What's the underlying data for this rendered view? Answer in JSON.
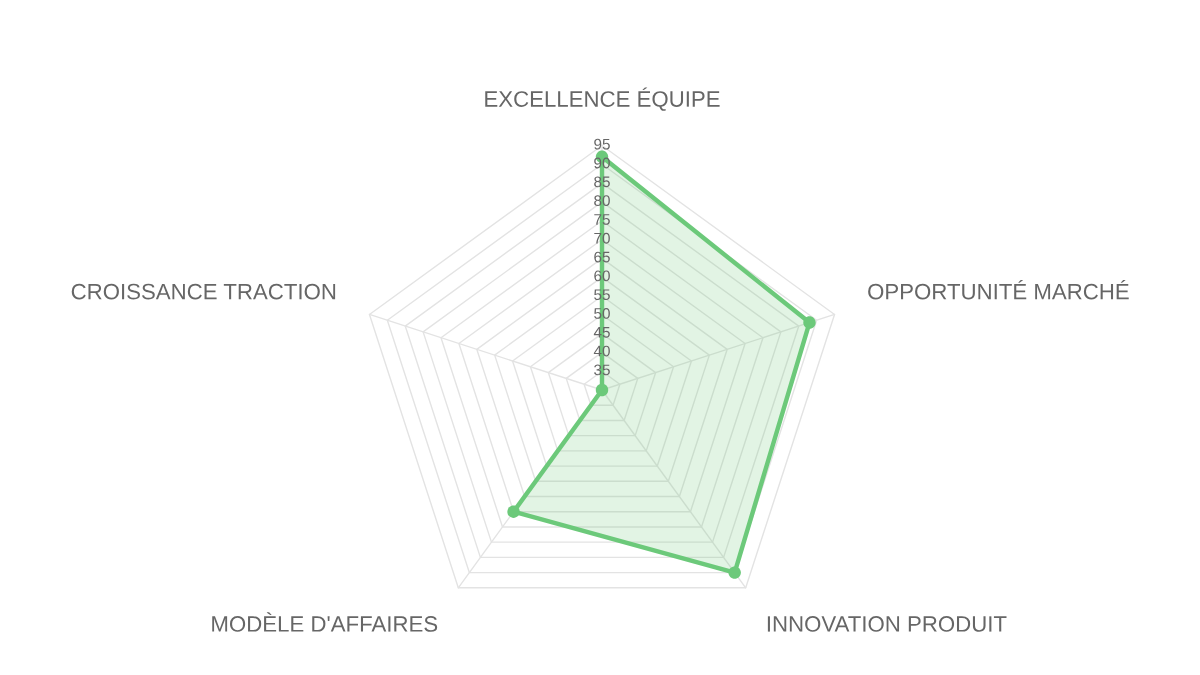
{
  "chart_data": {
    "type": "radar",
    "categories": [
      "EXCELLENCE ÉQUIPE",
      "OPPORTUNITÉ MARCHÉ",
      "INNOVATION PRODUIT",
      "MODÈLE D'AFFAIRES",
      "CROISSANCE TRACTION"
    ],
    "series": [
      {
        "color": "#6cc97a",
        "values": [
          92,
          88,
          90,
          70,
          30
        ]
      }
    ],
    "ylim": [
      30,
      95
    ],
    "yticks": [
      35,
      40,
      45,
      50,
      55,
      60,
      65,
      70,
      75,
      80,
      85,
      90,
      95
    ],
    "grid": true,
    "marker": "circle",
    "line_style": "solid"
  }
}
